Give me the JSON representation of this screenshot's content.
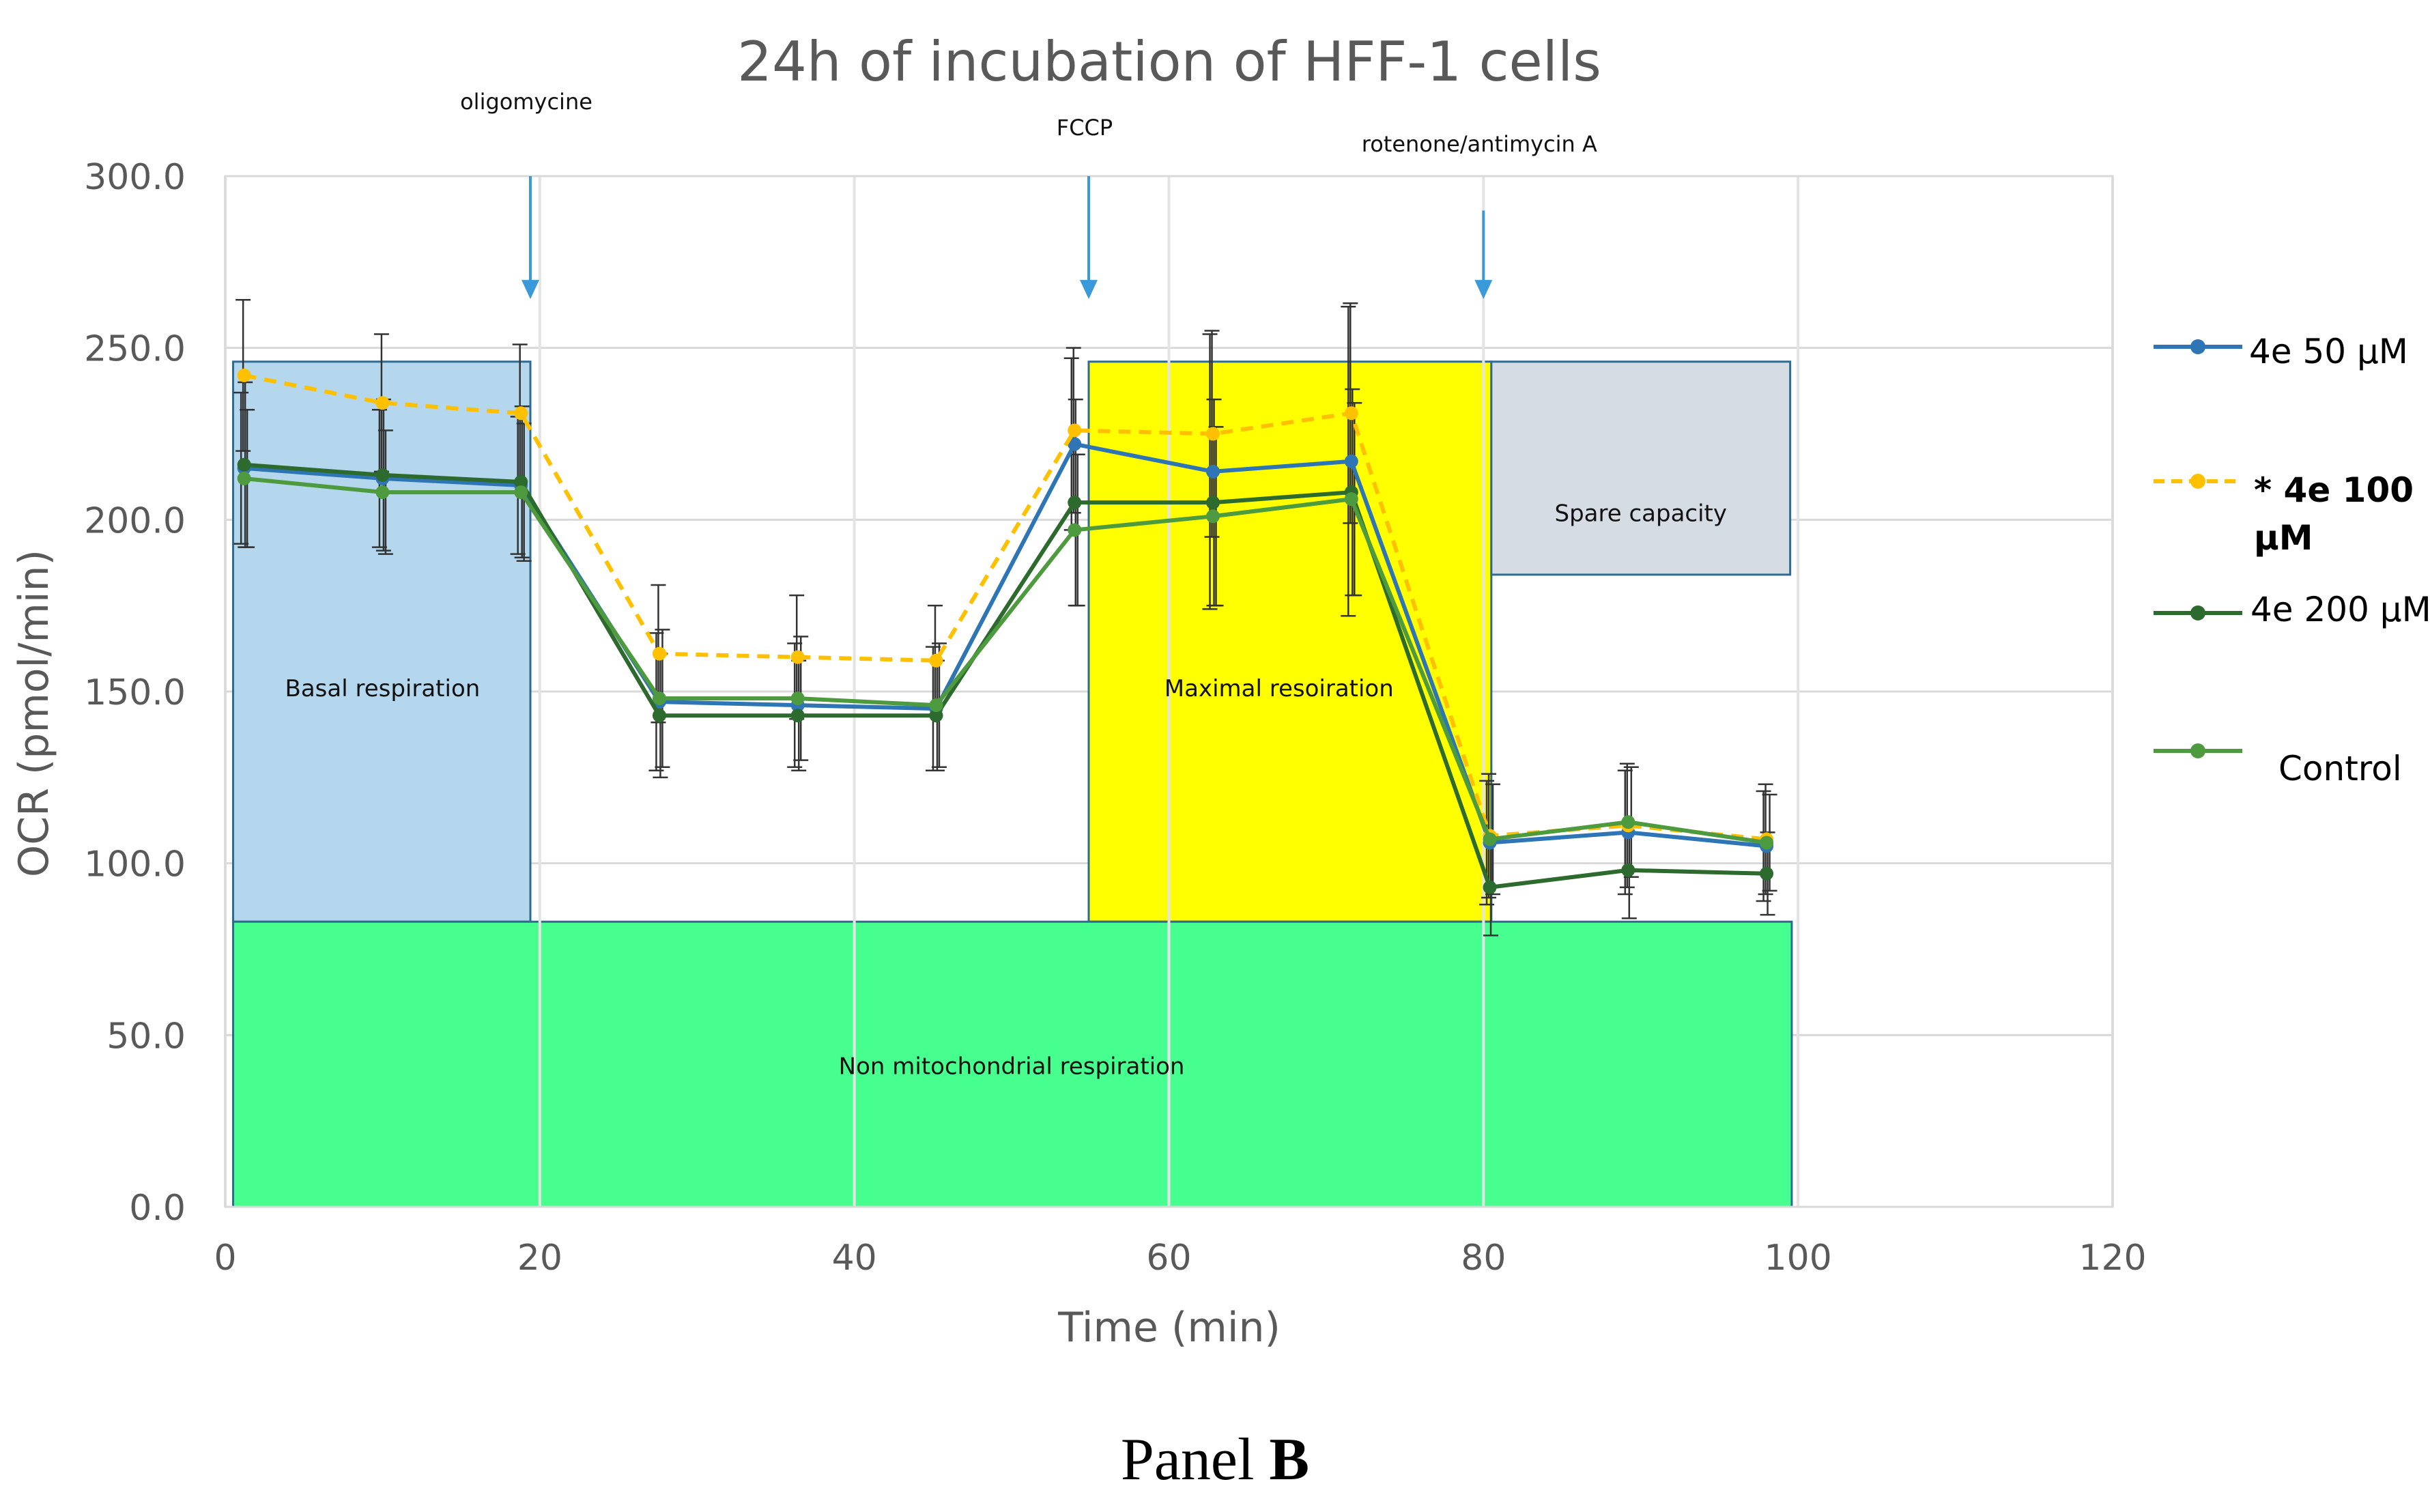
{
  "chart_data": {
    "type": "line",
    "title": "24h of incubation of HFF-1 cells",
    "xlabel": "Time (min)",
    "ylabel": "OCR (pmol/min)",
    "xlim": [
      0,
      120
    ],
    "ylim": [
      0,
      300
    ],
    "xticks": [
      0,
      20,
      40,
      60,
      80,
      100,
      120
    ],
    "xtick_labels": [
      "0",
      "20",
      "40",
      "60",
      "80",
      "100",
      "120"
    ],
    "yticks": [
      0,
      50,
      100,
      150,
      200,
      250,
      300
    ],
    "ytick_labels": [
      "0.0",
      "50.0",
      "100.0",
      "150.0",
      "200.0",
      "250.0",
      "300.0"
    ],
    "grid": true,
    "legend_position": "right",
    "x": [
      1.2,
      10,
      18.8,
      27.6,
      36.4,
      45.2,
      54,
      62.8,
      71.6,
      80.4,
      89.2,
      98
    ],
    "series": [
      {
        "name": "4e 50 µM",
        "color": "#2e75b6",
        "dashed": false,
        "values": [
          215,
          212,
          210,
          147,
          146,
          145,
          222,
          214,
          217,
          106,
          109,
          105
        ],
        "error": [
          22,
          20,
          20,
          20,
          18,
          18,
          25,
          40,
          45,
          18,
          18,
          16
        ]
      },
      {
        "name": "* 4e 100 µM",
        "color": "#ffc000",
        "dashed": true,
        "values": [
          242,
          234,
          231,
          161,
          160,
          159,
          226,
          225,
          231,
          108,
          111,
          107
        ],
        "error": [
          22,
          20,
          20,
          20,
          18,
          16,
          24,
          30,
          32,
          18,
          18,
          16
        ]
      },
      {
        "name": "4e 200 µM",
        "color": "#2d6a2d",
        "dashed": false,
        "values": [
          216,
          213,
          211,
          143,
          143,
          143,
          205,
          205,
          208,
          93,
          98,
          97
        ],
        "error": [
          24,
          22,
          22,
          18,
          16,
          16,
          30,
          30,
          30,
          14,
          14,
          12
        ]
      },
      {
        "name": "Control",
        "color": "#4e9a3e",
        "dashed": false,
        "values": [
          212,
          208,
          208,
          148,
          148,
          146,
          197,
          201,
          206,
          107,
          112,
          106
        ],
        "error": [
          20,
          18,
          20,
          20,
          18,
          18,
          22,
          26,
          28,
          16,
          16,
          14
        ]
      }
    ],
    "regions": [
      {
        "label": "Basal respiration",
        "x": [
          0.5,
          19.4
        ],
        "y": [
          83,
          246
        ],
        "fill": "#b4d7ee"
      },
      {
        "label": "Maximal resoiration",
        "x": [
          54.9,
          80.5
        ],
        "y": [
          83,
          246
        ],
        "fill": "#ffff00"
      },
      {
        "label": "Spare capacity",
        "x": [
          80.5,
          99.5
        ],
        "y": [
          184,
          246
        ],
        "fill": "#d6dce4"
      },
      {
        "label": "Non mitochondrial respiration",
        "x": [
          0.5,
          99.6
        ],
        "y": [
          0,
          83
        ],
        "fill": "#47ff8e"
      }
    ],
    "annotations": [
      {
        "label": "oligomycine",
        "x": 19.4,
        "arrow_top_y": 300,
        "arrow_bottom_y": 265
      },
      {
        "label": "FCCP",
        "x": 54.9,
        "arrow_top_y": 300,
        "arrow_bottom_y": 265
      },
      {
        "label": "rotenone/antimycin A",
        "x": 80,
        "arrow_top_y": 290,
        "arrow_bottom_y": 265
      }
    ]
  },
  "caption": {
    "prefix": "Panel ",
    "bold": "B"
  }
}
